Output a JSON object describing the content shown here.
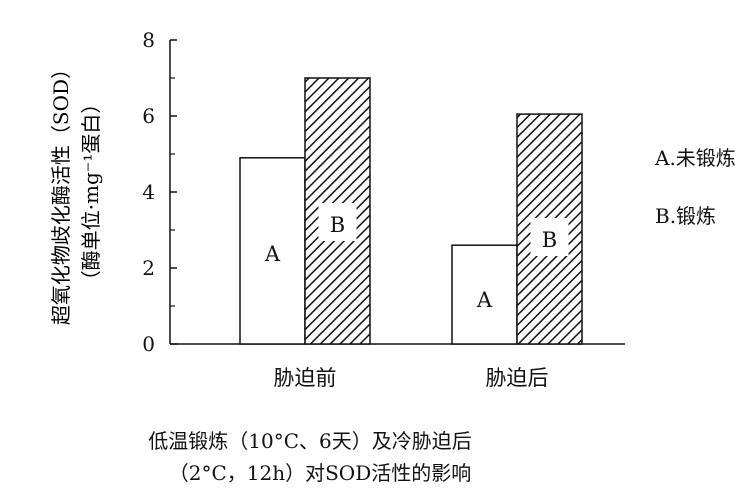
{
  "chart_data": {
    "type": "bar",
    "categories": [
      "胁迫前",
      "胁迫后"
    ],
    "series": [
      {
        "name": "A.未锻炼",
        "label": "A",
        "pattern": "plain",
        "values": [
          4.9,
          2.6
        ]
      },
      {
        "name": "B.锻炼",
        "label": "B",
        "pattern": "hatch",
        "values": [
          7.0,
          6.05
        ]
      }
    ],
    "ylabel_line1": "超氧化物歧化酶活性（SOD）",
    "ylabel_line2": "（酶单位·mg⁻¹蛋白）",
    "ylim": [
      0,
      8
    ],
    "yticks": [
      0,
      2,
      4,
      6,
      8
    ],
    "grid": false,
    "legend_position": "right"
  },
  "caption": {
    "line1": "低温锻炼（10°C、6天）及冷胁迫后",
    "line2": "（2°C，12h）对SOD活性的影响"
  },
  "colors": {
    "ink": "#111111",
    "background": "#ffffff"
  }
}
